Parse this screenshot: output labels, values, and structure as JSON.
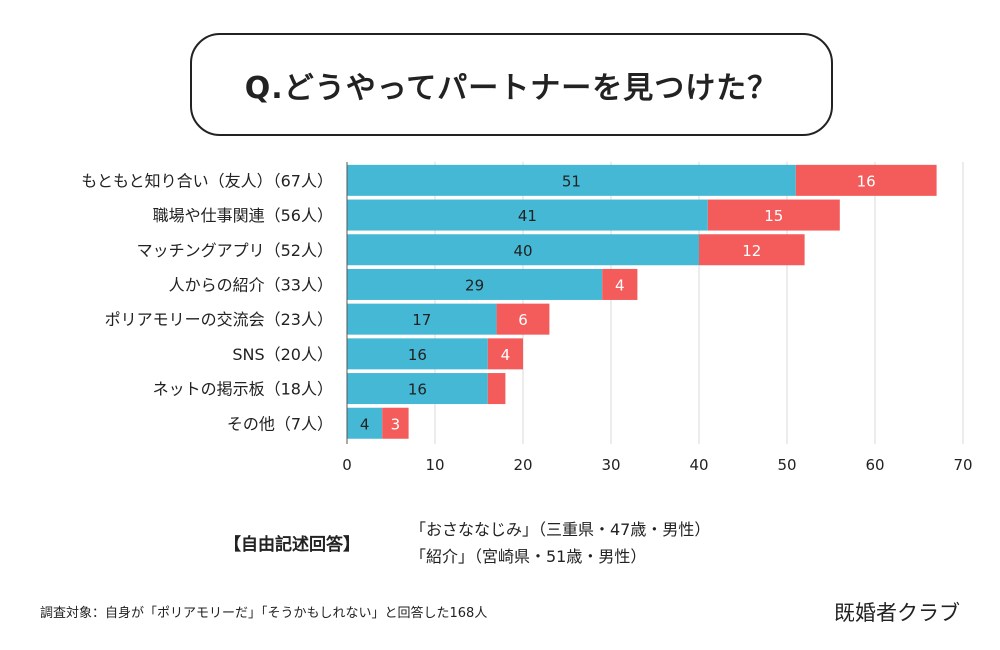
{
  "title": "Q.どうやってパートナーを見つけた？",
  "chart_data": {
    "type": "bar",
    "orientation": "horizontal",
    "stacked": true,
    "categories": [
      "もともと知り合い（友人）（67人）",
      "職場や仕事関連（56人）",
      "マッチングアプリ（52人）",
      "人からの紹介（33人）",
      "ポリアモリーの交流会（23人）",
      "SNS（20人）",
      "ネットの掲示板（18人）",
      "その他（7人）"
    ],
    "series": [
      {
        "color": "#45b8d6",
        "values": [
          51,
          41,
          40,
          29,
          17,
          16,
          16,
          4
        ],
        "labels": [
          "51",
          "41",
          "40",
          "29",
          "17",
          "16",
          "16",
          "4"
        ]
      },
      {
        "color": "#f45b5b",
        "values": [
          16,
          15,
          12,
          4,
          6,
          4,
          2,
          3
        ],
        "labels": [
          "16",
          "15",
          "12",
          "4",
          "6",
          "4",
          "",
          "3"
        ]
      }
    ],
    "xlim": [
      0,
      70
    ],
    "xticks": [
      "0",
      "10",
      "20",
      "30",
      "40",
      "50",
      "60",
      "70"
    ],
    "grid": true,
    "legend": "none"
  },
  "free_text": {
    "label": "【自由記述回答】",
    "quotes": [
      "「おさななじみ」（三重県・47歳・男性）",
      "「紹介」（宮崎県・51歳・男性）"
    ]
  },
  "footnote": "調査対象：自身が「ポリアモリーだ」「そうかもしれない」と回答した168人",
  "brand": "既婚者クラブ"
}
